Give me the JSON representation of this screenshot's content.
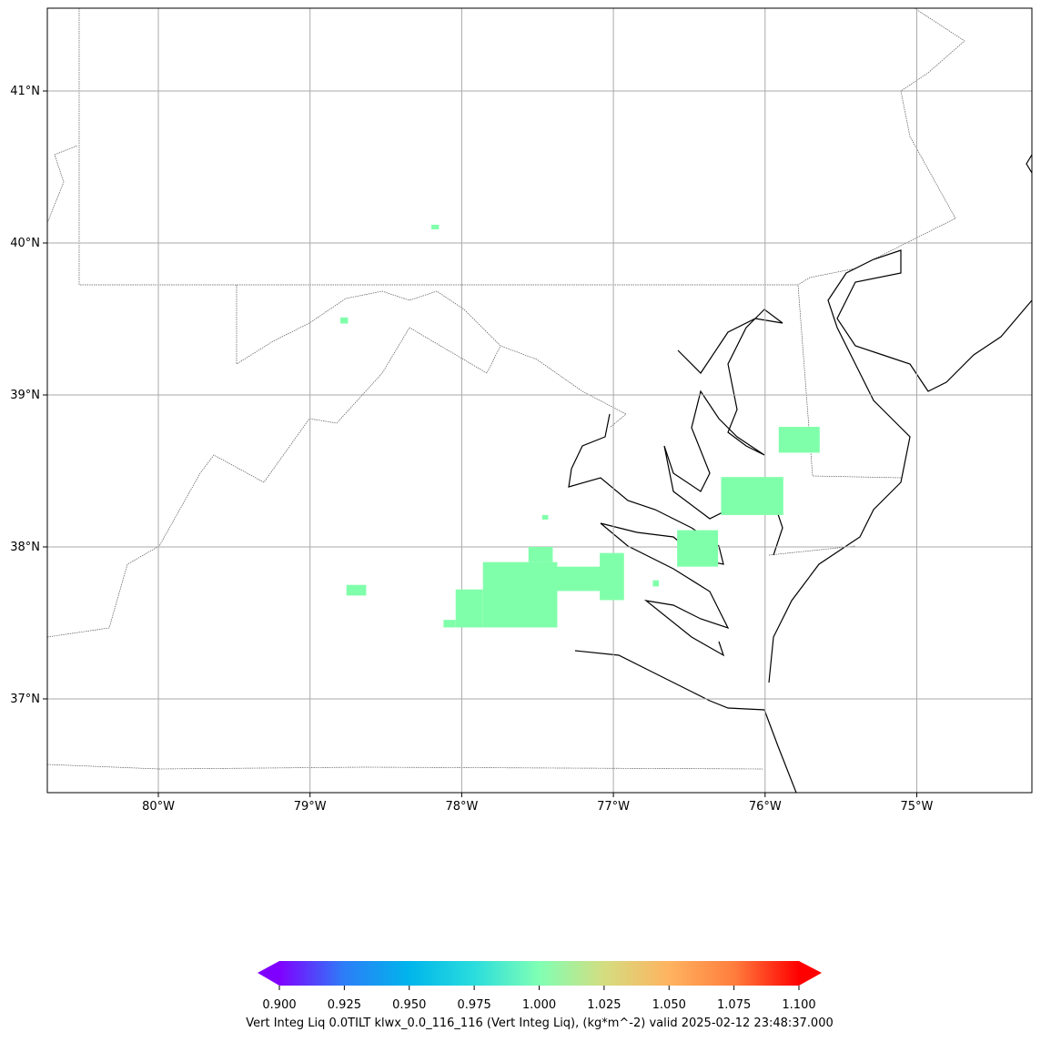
{
  "chart_data": {
    "type": "map",
    "xlim": [
      -80.732,
      -74.241
    ],
    "ylim": [
      36.383,
      41.545
    ],
    "xticks": [
      {
        "value": -80,
        "label": "80°W"
      },
      {
        "value": -79,
        "label": "79°W"
      },
      {
        "value": -78,
        "label": "78°W"
      },
      {
        "value": -77,
        "label": "77°W"
      },
      {
        "value": -76,
        "label": "76°W"
      },
      {
        "value": -75,
        "label": "75°W"
      }
    ],
    "yticks": [
      {
        "value": 37,
        "label": "37°N"
      },
      {
        "value": 38,
        "label": "38°N"
      },
      {
        "value": 39,
        "label": "39°N"
      },
      {
        "value": 40,
        "label": "40°N"
      },
      {
        "value": 41,
        "label": "41°N"
      }
    ],
    "grid": true,
    "cell_color": "#80ffaa",
    "cells": {
      "lon0": [
        -78.2,
        -78.8,
        -77.86,
        -78.04,
        -77.56,
        -77.4,
        -77.09,
        -78.76,
        -77.47,
        -76.58,
        -76.29,
        -75.91,
        -76.74,
        -78.12
      ],
      "lon1": [
        -78.15,
        -78.75,
        -77.37,
        -77.86,
        -77.4,
        -77.01,
        -76.93,
        -78.63,
        -77.43,
        -76.31,
        -75.88,
        -75.64,
        -76.7,
        -78.04
      ],
      "lat0": [
        40.09,
        39.47,
        37.47,
        37.47,
        37.9,
        37.71,
        37.65,
        37.68,
        38.18,
        37.87,
        38.21,
        38.62,
        37.74,
        37.47
      ],
      "lat1": [
        40.12,
        39.51,
        37.9,
        37.72,
        38.0,
        37.87,
        37.96,
        37.75,
        38.21,
        38.11,
        38.46,
        38.79,
        37.78,
        37.52
      ]
    },
    "colorbar": {
      "clim": [
        0.9,
        1.1
      ],
      "colormap": [
        "#8000ff",
        "#2c7ef7",
        "#00b5eb",
        "#2adddd",
        "#80ffb4",
        "#d4dd80",
        "#ffb360",
        "#ff7e3d",
        "#ff0000"
      ],
      "ticks": [
        {
          "value": 0.9,
          "label": "0.900"
        },
        {
          "value": 0.925,
          "label": "0.925"
        },
        {
          "value": 0.95,
          "label": "0.950"
        },
        {
          "value": 0.975,
          "label": "0.975"
        },
        {
          "value": 1.0,
          "label": "1.000"
        },
        {
          "value": 1.025,
          "label": "1.025"
        },
        {
          "value": 1.05,
          "label": "1.050"
        },
        {
          "value": 1.075,
          "label": "1.075"
        },
        {
          "value": 1.1,
          "label": "1.100"
        }
      ],
      "label": "Vert Integ Liq 0.0TILT klwx_0.0_116_116 (Vert Integ Liq), (kg*m^-2) valid 2025-02-12 23:48:37.000"
    }
  }
}
